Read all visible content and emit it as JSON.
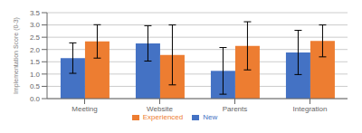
{
  "chart_data": {
    "type": "bar",
    "categories": [
      "Meeting",
      "Website",
      "Parents",
      "Integration"
    ],
    "series": [
      {
        "name": "New",
        "color": "#4472C4",
        "values": [
          1.65,
          2.25,
          1.13,
          1.88
        ],
        "errors": [
          0.62,
          0.72,
          0.95,
          0.9
        ]
      },
      {
        "name": "Experienced",
        "color": "#ED7D31",
        "values": [
          2.33,
          1.78,
          2.15,
          2.35
        ],
        "errors": [
          0.68,
          1.22,
          0.98,
          0.65
        ]
      }
    ],
    "ylabel": "Implementation Score (0-3)",
    "ylim": [
      0.0,
      3.5
    ],
    "yticks": [
      {
        "value": 0,
        "label": "0.0"
      },
      0.5,
      {
        "value": 1,
        "label": "1.0"
      },
      1.5,
      {
        "value": 2,
        "label": "2.0"
      },
      2.5,
      {
        "value": 3,
        "label": "3.0"
      },
      3.5
    ],
    "grid": true,
    "legend": "bottom"
  }
}
